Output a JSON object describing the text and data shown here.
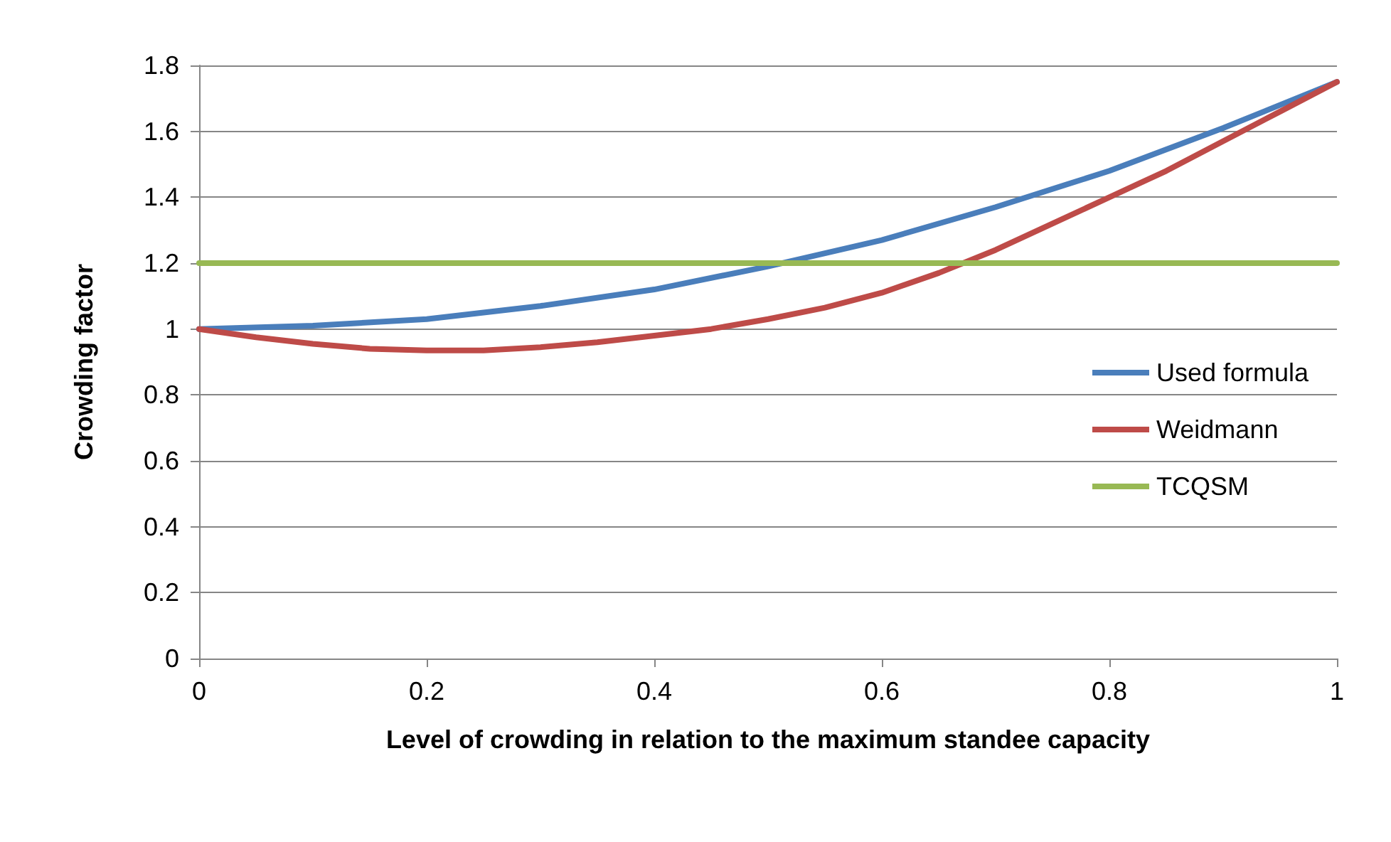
{
  "chart_data": {
    "type": "line",
    "xlabel": "Level of crowding in relation to the maximum standee capacity",
    "ylabel": "Crowding factor",
    "xlim": [
      0,
      1
    ],
    "xticks": [
      0,
      0.2,
      0.4,
      0.6,
      0.8,
      1
    ],
    "ylim": [
      0,
      1.8
    ],
    "yticks": [
      0,
      0.2,
      0.4,
      0.6,
      0.8,
      1,
      1.2,
      1.4,
      1.6,
      1.8
    ],
    "grid": "y",
    "legend": "right",
    "marker": "none",
    "line_style": "solid",
    "series": [
      {
        "name": "Used formula",
        "color": "#4a7ebb",
        "x": [
          0,
          0.1,
          0.2,
          0.3,
          0.4,
          0.5,
          0.6,
          0.7,
          0.8,
          0.9,
          1
        ],
        "values": [
          1,
          1.01,
          1.03,
          1.07,
          1.12,
          1.19,
          1.27,
          1.37,
          1.48,
          1.61,
          1.75
        ]
      },
      {
        "name": "Weidmann",
        "color": "#be4b48",
        "x": [
          0,
          0.05,
          0.1,
          0.15,
          0.2,
          0.25,
          0.3,
          0.35,
          0.4,
          0.45,
          0.5,
          0.55,
          0.6,
          0.65,
          0.7,
          0.75,
          0.8,
          0.85,
          0.9,
          0.95,
          1
        ],
        "values": [
          1,
          0.975,
          0.955,
          0.94,
          0.935,
          0.935,
          0.945,
          0.96,
          0.98,
          1,
          1.03,
          1.065,
          1.11,
          1.17,
          1.24,
          1.32,
          1.4,
          1.48,
          1.57,
          1.66,
          1.75
        ]
      },
      {
        "name": "TCQSM",
        "color": "#98b954",
        "x": [
          0,
          1
        ],
        "values": [
          1.2,
          1.2
        ]
      }
    ]
  }
}
